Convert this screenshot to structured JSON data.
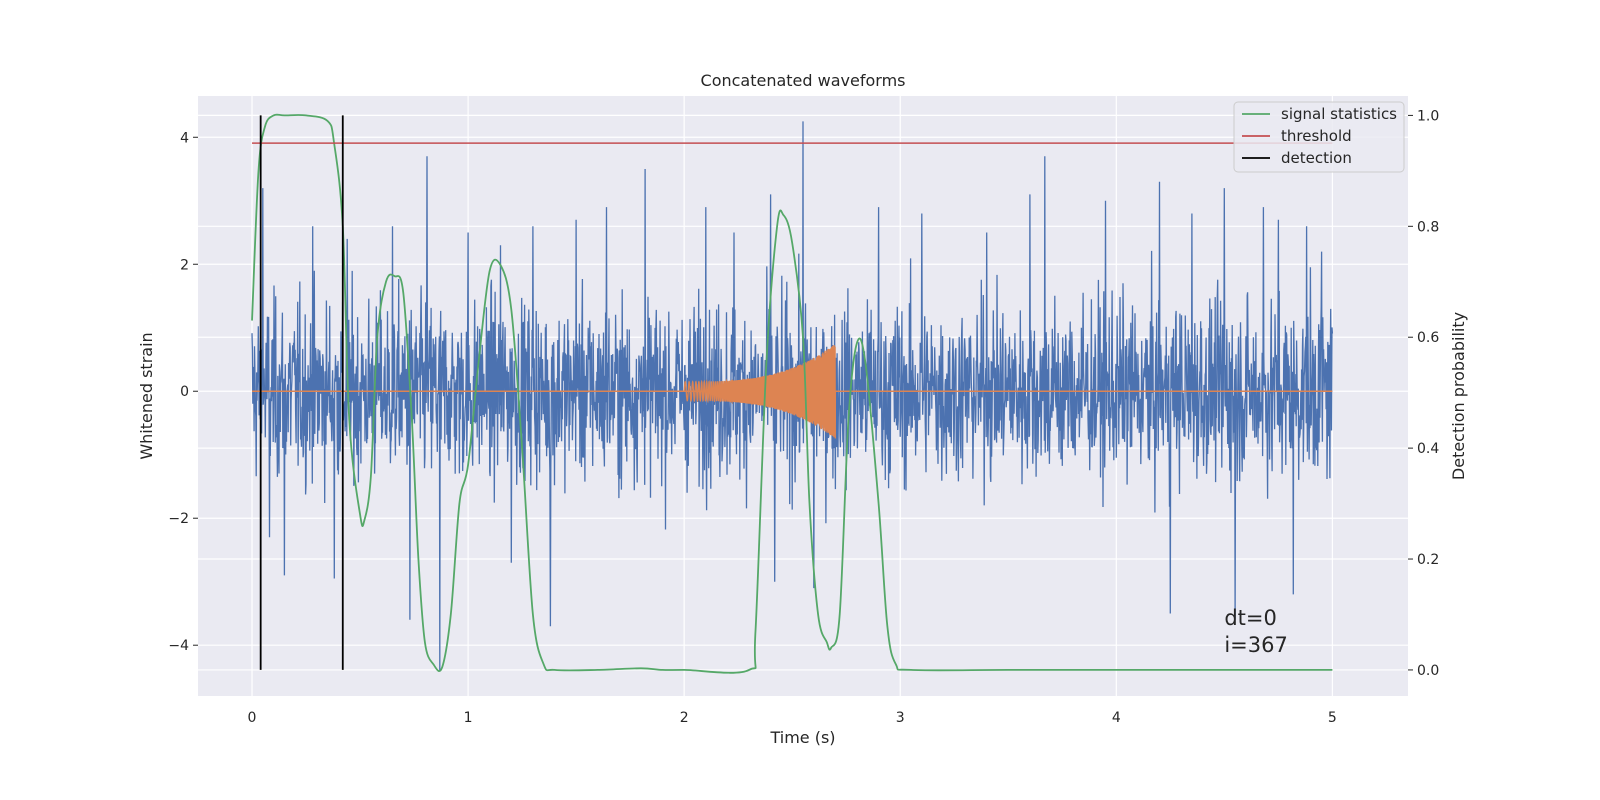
{
  "chart_data": {
    "type": "line",
    "title": "Concatenated waveforms",
    "xlabel": "Time (s)",
    "ylabel": "Whitened strain",
    "y2label": "Detection probability",
    "xlim": [
      -0.25,
      5.35
    ],
    "ylim": [
      -4.8,
      4.65
    ],
    "y2lim": [
      -0.047,
      1.035
    ],
    "xticks": [
      0,
      1,
      2,
      3,
      4,
      5
    ],
    "yticks": [
      -4,
      -2,
      0,
      2,
      4
    ],
    "y2ticks": [
      0.0,
      0.2,
      0.4,
      0.6,
      0.8,
      1.0
    ],
    "xtick_labels": [
      "0",
      "1",
      "2",
      "3",
      "4",
      "5"
    ],
    "ytick_labels": [
      "−4",
      "−2",
      "0",
      "2",
      "4"
    ],
    "y2tick_labels": [
      "0.0",
      "0.2",
      "0.4",
      "0.6",
      "0.8",
      "1.0"
    ],
    "grid": true,
    "legend_position": "top-right",
    "background": "#eaeaf2",
    "strain": {
      "color": "#4c72b0",
      "x_range": [
        0,
        5
      ],
      "typical_amplitude": 1.0,
      "spikes": [
        {
          "x": 0.05,
          "y": 3.2
        },
        {
          "x": 0.08,
          "y": -2.3
        },
        {
          "x": 0.15,
          "y": 2.8
        },
        {
          "x": 0.15,
          "y": -2.9
        },
        {
          "x": 0.28,
          "y": 2.6
        },
        {
          "x": 0.38,
          "y": -2.95
        },
        {
          "x": 0.44,
          "y": 2.4
        },
        {
          "x": 0.65,
          "y": 2.6
        },
        {
          "x": 0.73,
          "y": -3.6
        },
        {
          "x": 0.81,
          "y": 3.7
        },
        {
          "x": 0.87,
          "y": -4.4
        },
        {
          "x": 1.0,
          "y": 2.5
        },
        {
          "x": 1.15,
          "y": 2.3
        },
        {
          "x": 1.2,
          "y": -2.7
        },
        {
          "x": 1.3,
          "y": 2.6
        },
        {
          "x": 1.38,
          "y": -3.7
        },
        {
          "x": 1.5,
          "y": 2.7
        },
        {
          "x": 1.64,
          "y": 2.9
        },
        {
          "x": 1.82,
          "y": 3.5
        },
        {
          "x": 2.1,
          "y": 2.9
        },
        {
          "x": 2.23,
          "y": 2.5
        },
        {
          "x": 2.4,
          "y": 3.1
        },
        {
          "x": 2.42,
          "y": -3.0
        },
        {
          "x": 2.55,
          "y": 4.25
        },
        {
          "x": 2.6,
          "y": -3.1
        },
        {
          "x": 2.9,
          "y": 2.9
        },
        {
          "x": 3.1,
          "y": 2.8
        },
        {
          "x": 3.4,
          "y": 2.5
        },
        {
          "x": 3.6,
          "y": 3.1
        },
        {
          "x": 3.67,
          "y": 3.7
        },
        {
          "x": 3.95,
          "y": 3.0
        },
        {
          "x": 4.2,
          "y": 3.3
        },
        {
          "x": 4.25,
          "y": -3.5
        },
        {
          "x": 4.35,
          "y": 2.8
        },
        {
          "x": 4.5,
          "y": 3.2
        },
        {
          "x": 4.55,
          "y": -3.6
        },
        {
          "x": 4.68,
          "y": 2.9
        },
        {
          "x": 4.75,
          "y": 2.7
        },
        {
          "x": 4.82,
          "y": -3.2
        },
        {
          "x": 4.88,
          "y": 2.6
        },
        {
          "x": 4.95,
          "y": 2.2
        }
      ]
    },
    "injection": {
      "color": "#dd8452",
      "start_x": 2.0,
      "end_x": 2.7,
      "start_amplitude": 0.15,
      "peak_amplitude": 0.75,
      "baseline": 0
    },
    "series": [
      {
        "name": "signal statistics",
        "color": "#55a868",
        "axis": "right",
        "x": [
          0.0,
          0.03,
          0.06,
          0.1,
          0.15,
          0.25,
          0.35,
          0.38,
          0.42,
          0.45,
          0.5,
          0.52,
          0.55,
          0.58,
          0.62,
          0.66,
          0.7,
          0.74,
          0.77,
          0.8,
          0.84,
          0.88,
          0.92,
          0.96,
          1.0,
          1.05,
          1.1,
          1.15,
          1.2,
          1.25,
          1.3,
          1.35,
          1.4,
          1.6,
          1.8,
          1.9,
          2.0,
          2.3,
          2.33,
          2.38,
          2.43,
          2.46,
          2.5,
          2.55,
          2.58,
          2.62,
          2.66,
          2.68,
          2.72,
          2.76,
          2.8,
          2.84,
          2.9,
          2.94,
          2.98,
          3.05,
          3.5,
          4.0,
          4.5,
          5.0
        ],
        "y": [
          0.63,
          0.9,
          0.98,
          1.0,
          1.0,
          1.0,
          0.99,
          0.95,
          0.8,
          0.45,
          0.28,
          0.27,
          0.35,
          0.6,
          0.7,
          0.71,
          0.68,
          0.45,
          0.2,
          0.05,
          0.01,
          0.005,
          0.1,
          0.3,
          0.37,
          0.56,
          0.72,
          0.73,
          0.65,
          0.4,
          0.1,
          0.01,
          0.0,
          0.0,
          0.003,
          0.0,
          0.0,
          0.0,
          0.07,
          0.55,
          0.8,
          0.82,
          0.77,
          0.6,
          0.3,
          0.1,
          0.05,
          0.04,
          0.1,
          0.45,
          0.59,
          0.55,
          0.3,
          0.08,
          0.01,
          0.0,
          0.0,
          0.0,
          0.0,
          0.0
        ]
      },
      {
        "name": "threshold",
        "color": "#c44e52",
        "axis": "right",
        "x": [
          0,
          5
        ],
        "y": [
          0.95,
          0.95
        ]
      },
      {
        "name": "detection",
        "color": "#000000",
        "axis": "right",
        "type": "vlines",
        "x": [
          0.04,
          0.42
        ],
        "ymin": 0.0,
        "ymax": 1.0
      }
    ],
    "annotations": [
      "dt=0",
      "i=367"
    ],
    "annotation_position": {
      "x": 4.5,
      "y": -4.0
    }
  }
}
